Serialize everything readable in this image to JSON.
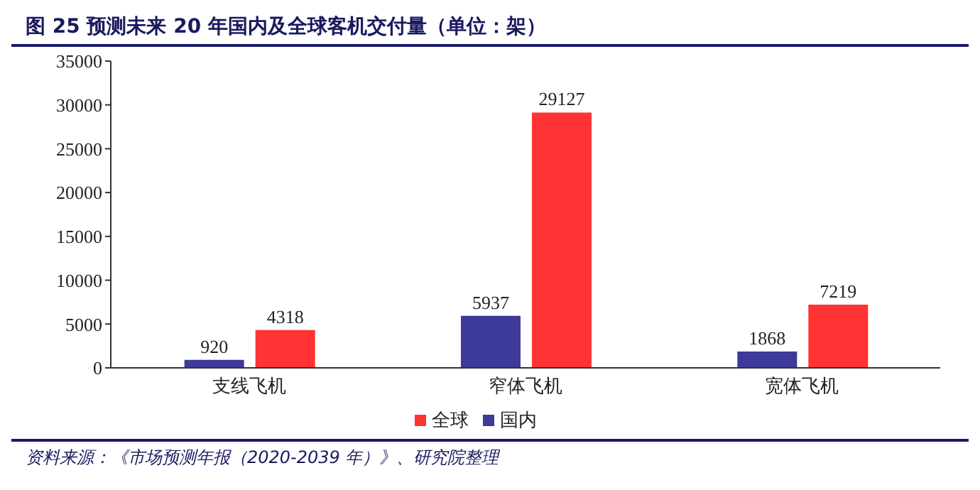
{
  "chart_data": {
    "type": "bar",
    "title": "图  25  预测未来 20 年国内及全球客机交付量（单位：架）",
    "categories": [
      "支线飞机",
      "窄体飞机",
      "宽体飞机"
    ],
    "series": [
      {
        "name": "国内",
        "color": "#3d3a99",
        "values": [
          920,
          5937,
          1868
        ]
      },
      {
        "name": "全球",
        "color": "#ff3333",
        "values": [
          4318,
          29127,
          7219
        ]
      }
    ],
    "ylim": [
      0,
      35000
    ],
    "yticks": [
      0,
      5000,
      10000,
      15000,
      20000,
      25000,
      30000,
      35000
    ],
    "grid": false,
    "legend": "bottom",
    "data_labels": true,
    "annotations": [
      "资料来源：《市场预测年报（2020-2039 年）》、研究院整理"
    ]
  }
}
